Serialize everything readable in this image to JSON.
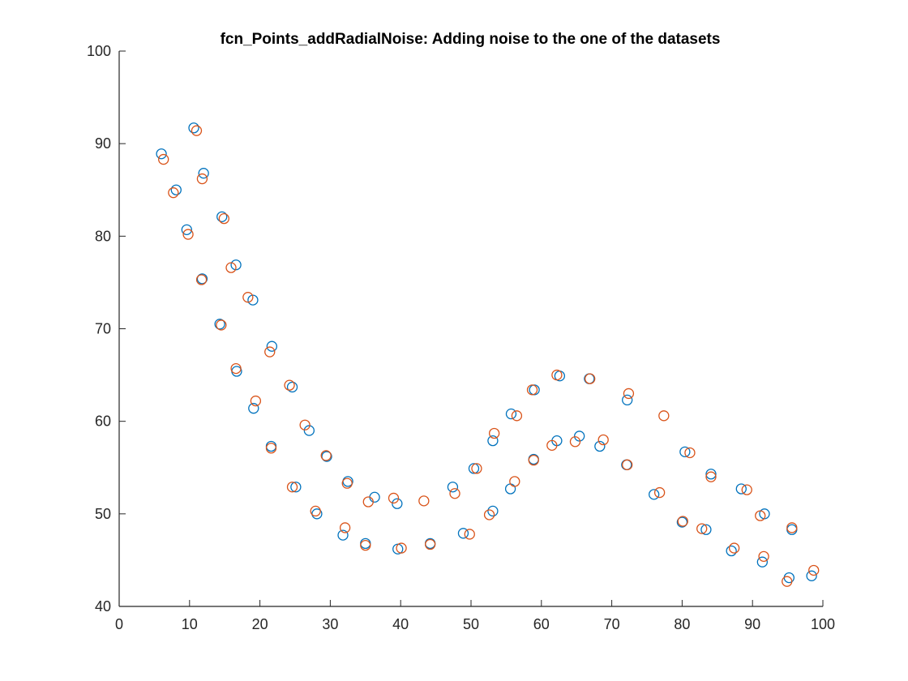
{
  "chart_data": {
    "type": "scatter",
    "title": "fcn_Points_addRadialNoise: Adding noise to the one of the datasets",
    "xlabel": "",
    "ylabel": "",
    "xlim": [
      0,
      100
    ],
    "ylim": [
      40,
      100
    ],
    "xticks": [
      "0",
      "10",
      "20",
      "30",
      "40",
      "50",
      "60",
      "70",
      "80",
      "90",
      "100"
    ],
    "yticks": [
      "40",
      "50",
      "60",
      "70",
      "80",
      "90",
      "100"
    ],
    "grid": false,
    "legend": "none",
    "marker": "open-circle",
    "series": [
      {
        "color": "#0072BD",
        "points": [
          [
            6.0,
            88.9
          ],
          [
            8.1,
            85.0
          ],
          [
            9.6,
            80.7
          ],
          [
            10.6,
            91.7
          ],
          [
            11.8,
            75.4
          ],
          [
            12.0,
            86.8
          ],
          [
            14.3,
            70.5
          ],
          [
            14.6,
            82.1
          ],
          [
            16.6,
            76.9
          ],
          [
            16.7,
            65.4
          ],
          [
            19.0,
            73.1
          ],
          [
            19.1,
            61.4
          ],
          [
            21.6,
            57.3
          ],
          [
            21.7,
            68.1
          ],
          [
            24.6,
            63.7
          ],
          [
            25.1,
            52.9
          ],
          [
            27.0,
            59.0
          ],
          [
            28.1,
            50.0
          ],
          [
            29.5,
            56.2
          ],
          [
            31.8,
            47.7
          ],
          [
            32.5,
            53.5
          ],
          [
            35.0,
            46.8
          ],
          [
            36.3,
            51.8
          ],
          [
            39.5,
            51.1
          ],
          [
            39.6,
            46.2
          ],
          [
            44.2,
            46.8
          ],
          [
            47.4,
            52.9
          ],
          [
            48.9,
            47.9
          ],
          [
            50.4,
            54.9
          ],
          [
            53.1,
            50.3
          ],
          [
            53.1,
            57.9
          ],
          [
            55.6,
            52.7
          ],
          [
            55.7,
            60.8
          ],
          [
            58.9,
            55.9
          ],
          [
            59.0,
            63.4
          ],
          [
            62.2,
            57.9
          ],
          [
            62.6,
            64.9
          ],
          [
            65.4,
            58.4
          ],
          [
            66.8,
            64.6
          ],
          [
            68.3,
            57.3
          ],
          [
            72.2,
            62.3
          ],
          [
            72.1,
            55.3
          ],
          [
            76.0,
            52.1
          ],
          [
            80.0,
            49.1
          ],
          [
            80.4,
            56.7
          ],
          [
            83.4,
            48.3
          ],
          [
            84.1,
            54.3
          ],
          [
            87.0,
            46.0
          ],
          [
            88.4,
            52.7
          ],
          [
            91.4,
            44.8
          ],
          [
            91.7,
            50.0
          ],
          [
            95.2,
            43.1
          ],
          [
            95.6,
            48.3
          ],
          [
            98.4,
            43.3
          ]
        ]
      },
      {
        "color": "#D95319",
        "points": [
          [
            6.3,
            88.3
          ],
          [
            7.7,
            84.7
          ],
          [
            9.8,
            80.2
          ],
          [
            11.0,
            91.4
          ],
          [
            11.7,
            75.3
          ],
          [
            11.8,
            86.2
          ],
          [
            14.5,
            70.4
          ],
          [
            14.9,
            81.9
          ],
          [
            15.9,
            76.6
          ],
          [
            16.6,
            65.7
          ],
          [
            18.3,
            73.4
          ],
          [
            19.4,
            62.2
          ],
          [
            21.6,
            57.1
          ],
          [
            21.4,
            67.5
          ],
          [
            24.2,
            63.9
          ],
          [
            24.6,
            52.9
          ],
          [
            26.4,
            59.6
          ],
          [
            27.9,
            50.3
          ],
          [
            29.4,
            56.3
          ],
          [
            32.1,
            48.5
          ],
          [
            32.4,
            53.3
          ],
          [
            35.0,
            46.6
          ],
          [
            35.4,
            51.3
          ],
          [
            39.0,
            51.7
          ],
          [
            40.1,
            46.3
          ],
          [
            43.3,
            51.4
          ],
          [
            44.2,
            46.7
          ],
          [
            47.7,
            52.2
          ],
          [
            49.8,
            47.8
          ],
          [
            50.8,
            54.9
          ],
          [
            52.6,
            49.9
          ],
          [
            53.3,
            58.7
          ],
          [
            56.2,
            53.5
          ],
          [
            56.5,
            60.6
          ],
          [
            58.7,
            63.4
          ],
          [
            58.9,
            55.8
          ],
          [
            61.5,
            57.4
          ],
          [
            62.2,
            65.0
          ],
          [
            64.8,
            57.8
          ],
          [
            66.9,
            64.6
          ],
          [
            68.8,
            58.0
          ],
          [
            72.4,
            63.0
          ],
          [
            72.2,
            55.3
          ],
          [
            76.8,
            52.3
          ],
          [
            77.4,
            60.6
          ],
          [
            80.1,
            49.2
          ],
          [
            81.1,
            56.6
          ],
          [
            82.8,
            48.4
          ],
          [
            84.1,
            54.0
          ],
          [
            87.4,
            46.3
          ],
          [
            89.2,
            52.6
          ],
          [
            91.6,
            45.4
          ],
          [
            91.1,
            49.8
          ],
          [
            94.9,
            42.7
          ],
          [
            95.6,
            48.5
          ],
          [
            98.7,
            43.9
          ]
        ]
      }
    ]
  }
}
